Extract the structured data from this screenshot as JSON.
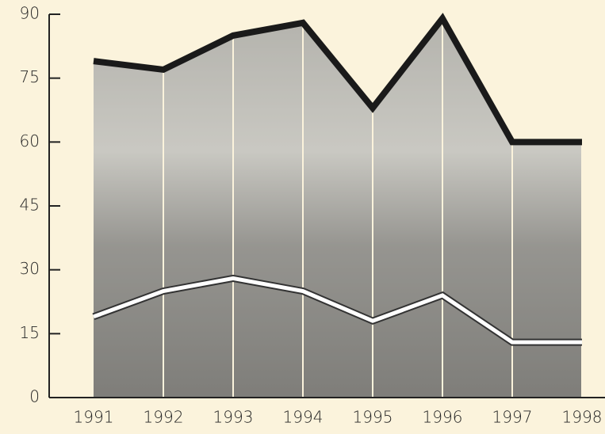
{
  "chart_data": {
    "type": "line",
    "categories": [
      "1991",
      "1992",
      "1993",
      "1994",
      "1995",
      "1996",
      "1997",
      "1998"
    ],
    "series": [
      {
        "color": "#1a1a1a",
        "values": [
          79,
          77,
          85,
          88,
          68,
          89,
          60,
          60
        ]
      },
      {
        "color": "#ffffff",
        "values": [
          19,
          25,
          28,
          25,
          18,
          24,
          13,
          13
        ]
      }
    ],
    "ylim": [
      0,
      90
    ],
    "yticks": [
      0,
      15,
      30,
      45,
      60,
      75,
      90
    ],
    "area_fill": "#9a9a96"
  }
}
